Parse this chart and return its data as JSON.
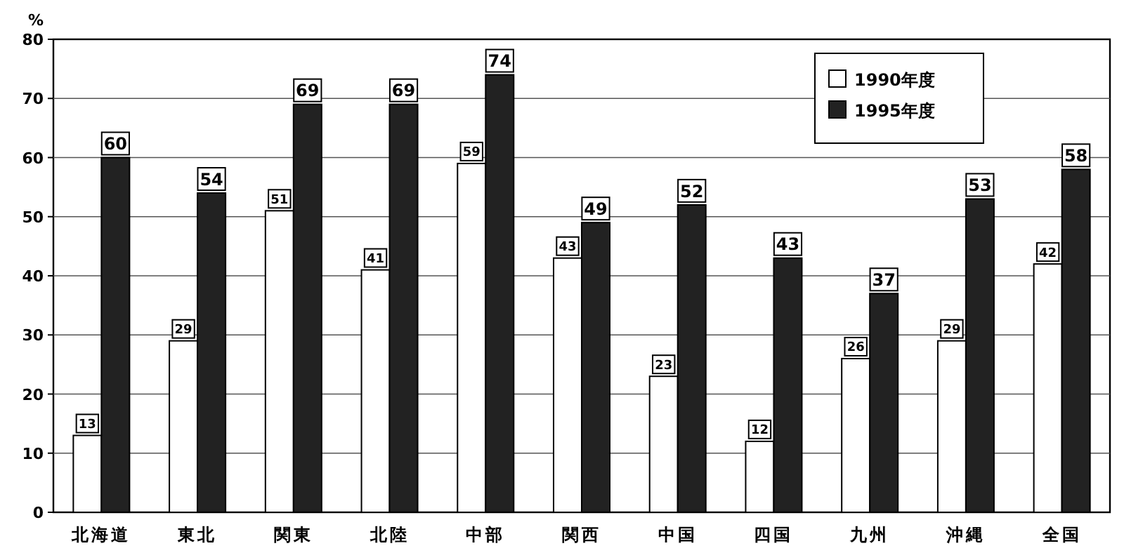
{
  "chart_data": {
    "type": "bar",
    "ylabel": "%",
    "categories": [
      "北海道",
      "東北",
      "関東",
      "北陸",
      "中部",
      "関西",
      "中国",
      "四国",
      "九州",
      "沖縄",
      "全国"
    ],
    "series": [
      {
        "name": "1990年度",
        "color": "#ffffff",
        "values": [
          13,
          29,
          51,
          41,
          59,
          43,
          23,
          12,
          26,
          29,
          42
        ]
      },
      {
        "name": "1995年度",
        "color": "#222222",
        "values": [
          60,
          54,
          69,
          69,
          74,
          49,
          52,
          43,
          37,
          53,
          58
        ]
      }
    ],
    "ylim": [
      0,
      80
    ],
    "yticks": [
      0,
      10,
      20,
      30,
      40,
      50,
      60,
      70,
      80
    ],
    "grid": "y",
    "legend": "top right",
    "data_labels": true
  }
}
